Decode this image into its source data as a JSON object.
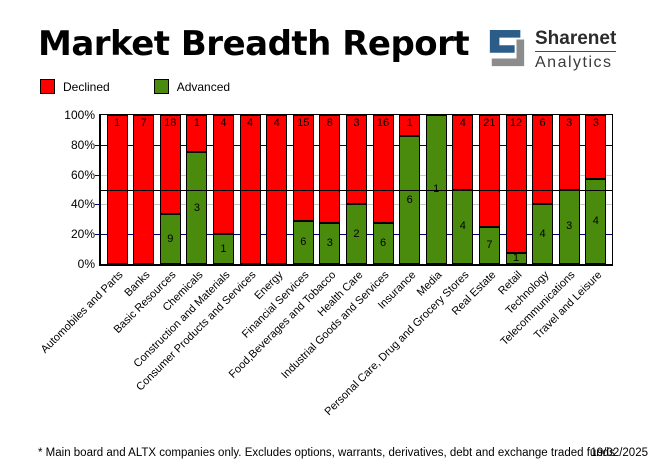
{
  "header": {
    "title": "Market Breadth Report",
    "logo": {
      "brand": "Sharenet",
      "subtitle": "Analytics",
      "blue": "#2c5d88",
      "gray": "#8c8c8c"
    }
  },
  "chart_data": {
    "type": "bar",
    "variant": "stacked-percent",
    "title": "Market Breadth Report",
    "categories": [
      "Automobiles and Parts",
      "Banks",
      "Basic Resources",
      "Chemicals",
      "Construction and Materials",
      "Consumer Products and Services",
      "Energy",
      "Financial Services",
      "Food,Beverages and Tobacco",
      "Health Care",
      "Industrial Goods and Services",
      "Insurance",
      "Media",
      "Personal Care, Drug and Grocery Stores",
      "Real Estate",
      "Retail",
      "Technology",
      "Telecommunications",
      "Travel and Leisure"
    ],
    "series": [
      {
        "name": "Declined",
        "color": "#ff0000",
        "values": [
          1,
          7,
          18,
          1,
          4,
          4,
          4,
          15,
          8,
          3,
          16,
          1,
          0,
          4,
          21,
          12,
          6,
          3,
          3
        ]
      },
      {
        "name": "Advanced",
        "color": "#4a8b0e",
        "values": [
          0,
          0,
          9,
          3,
          1,
          0,
          0,
          6,
          3,
          2,
          6,
          6,
          1,
          4,
          7,
          1,
          4,
          3,
          4
        ]
      }
    ],
    "ylim": [
      0,
      100
    ],
    "y_ticks": [
      "0%",
      "20%",
      "40%",
      "60%",
      "80%",
      "100%"
    ],
    "gridlines": {
      "navy_pcts": [
        20,
        80
      ],
      "gray_pcts": [
        40,
        60
      ],
      "reference_black_pct": 50
    },
    "grid_navy_color": "#000080",
    "grid_gray_color": "#c6c6c6",
    "legend_position": "top-left",
    "xlabel": "",
    "ylabel": ""
  },
  "footer": {
    "note": "* Main board and ALTX companies only. Excludes options, warrants, derivatives, debt and exchange traded funds",
    "date": "19/02/2025"
  }
}
